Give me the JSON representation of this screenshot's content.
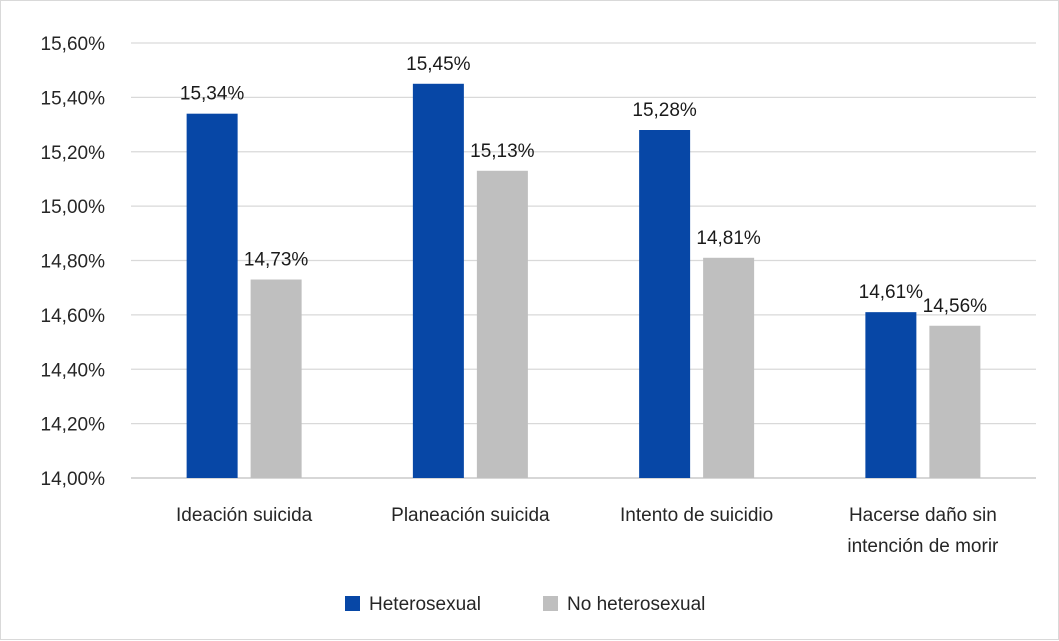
{
  "chart_data": {
    "type": "bar",
    "categories": [
      [
        "Ideación suicida"
      ],
      [
        "Planeación suicida"
      ],
      [
        "Intento de suicidio"
      ],
      [
        "Hacerse daño sin",
        "intención de morir"
      ]
    ],
    "series": [
      {
        "name": "Heterosexual",
        "color": "#0747a6",
        "values": [
          15.34,
          15.45,
          15.28,
          14.61
        ],
        "labels": [
          "15,34%",
          "15,45%",
          "15,28%",
          "14,61%"
        ]
      },
      {
        "name": "No heterosexual",
        "color": "#bfbfbf",
        "values": [
          14.73,
          15.13,
          14.81,
          14.56
        ],
        "labels": [
          "14,73%",
          "15,13%",
          "14,81%",
          "14,56%"
        ]
      }
    ],
    "y_ticks": [
      {
        "value": 14.0,
        "label": "14,00%"
      },
      {
        "value": 14.2,
        "label": "14,20%"
      },
      {
        "value": 14.4,
        "label": "14,40%"
      },
      {
        "value": 14.6,
        "label": "14,60%"
      },
      {
        "value": 14.8,
        "label": "14,80%"
      },
      {
        "value": 15.0,
        "label": "15,00%"
      },
      {
        "value": 15.2,
        "label": "15,20%"
      },
      {
        "value": 15.4,
        "label": "15,40%"
      },
      {
        "value": 15.6,
        "label": "15,60%"
      }
    ],
    "ylim": [
      14.0,
      15.6
    ],
    "grid": true,
    "legend_position": "bottom",
    "gridline_color": "#d9d9d9",
    "axis_color": "#bfbfbf"
  }
}
